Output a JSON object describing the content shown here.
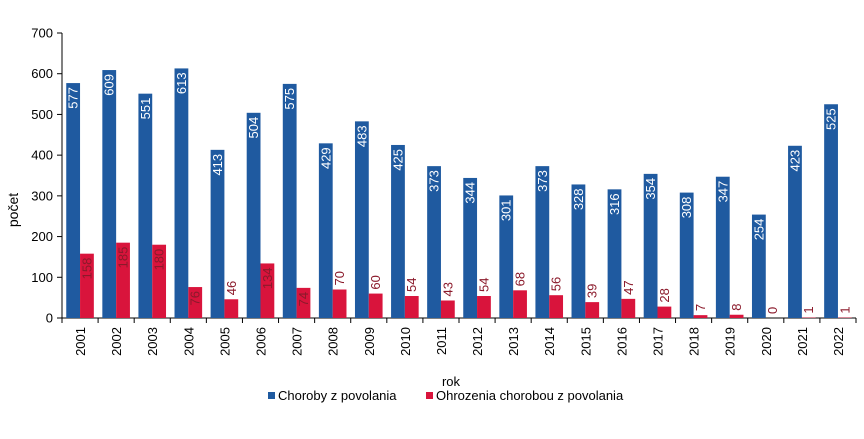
{
  "chart_data": {
    "type": "bar",
    "title": "",
    "xlabel": "rok",
    "ylabel": "počet",
    "ylim": [
      0,
      700
    ],
    "yticks": [
      0,
      100,
      200,
      300,
      400,
      500,
      600,
      700
    ],
    "grid": false,
    "legend_position": "bottom",
    "categories": [
      "2001",
      "2002",
      "2003",
      "2004",
      "2005",
      "2006",
      "2007",
      "2008",
      "2009",
      "2010",
      "2011",
      "2012",
      "2013",
      "2014",
      "2015",
      "2016",
      "2017",
      "2018",
      "2019",
      "2020",
      "2021",
      "2022"
    ],
    "series": [
      {
        "name": "Choroby z povolania",
        "color": "#1F5AA0",
        "label_color": "#ffffff",
        "values": [
          577,
          609,
          551,
          613,
          413,
          504,
          575,
          429,
          483,
          425,
          373,
          344,
          301,
          373,
          328,
          316,
          354,
          308,
          347,
          254,
          423,
          525
        ]
      },
      {
        "name": "Ohrozenia chorobou z povolania",
        "color": "#D9143C",
        "label_color": "#8B1A2B",
        "values": [
          158,
          185,
          180,
          76,
          46,
          134,
          74,
          70,
          60,
          54,
          43,
          54,
          68,
          56,
          39,
          47,
          28,
          7,
          8,
          0,
          1,
          1
        ]
      }
    ]
  }
}
